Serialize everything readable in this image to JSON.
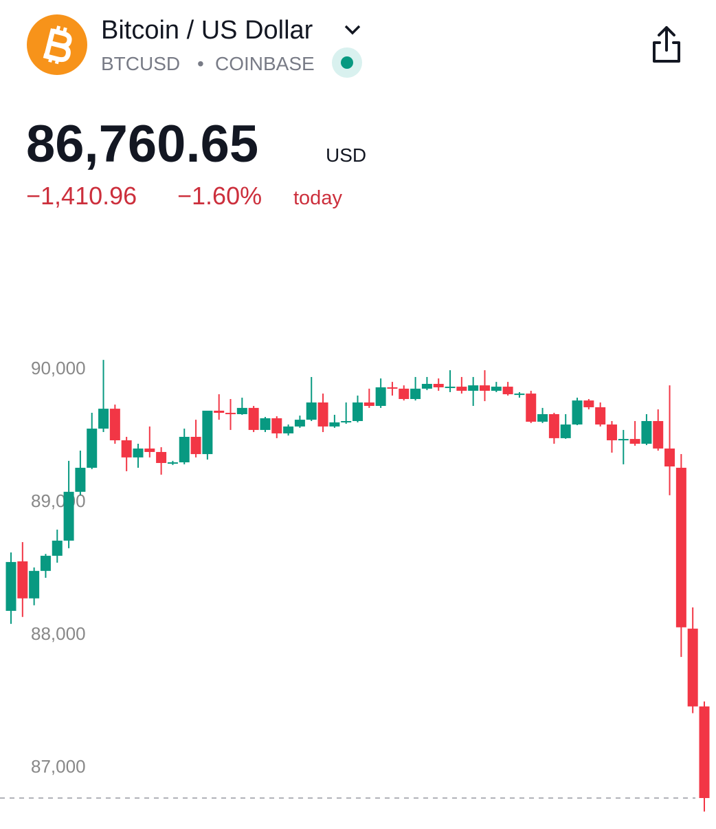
{
  "header": {
    "title": "Bitcoin / US Dollar",
    "symbol": "BTCUSD",
    "separator": "•",
    "exchange": "COINBASE"
  },
  "quote": {
    "price": "86,760.65",
    "currency": "USD",
    "change": "−1,410.96",
    "change_percent": "−1.60%",
    "period": "today"
  },
  "chart_data": {
    "type": "candlestick",
    "open": [
      88171,
      88544,
      88265,
      88472,
      88586,
      88700,
      89068,
      89249,
      89544,
      89694,
      89456,
      89327,
      89394,
      89368,
      89285,
      89290,
      89482,
      89352,
      89679,
      89663,
      89653,
      89700,
      89534,
      89622,
      89508,
      89560,
      89611,
      89741,
      89560,
      89591,
      89601,
      89741,
      89715,
      89855,
      89845,
      89767,
      89845,
      89881,
      89855,
      89860,
      89829,
      89870,
      89829,
      89860,
      89803,
      89808,
      89596,
      89653,
      89472,
      89575,
      89756,
      89705,
      89575,
      89456,
      89466,
      89430,
      89601,
      89394,
      89249,
      88037,
      87451
    ],
    "high": [
      88611,
      88689,
      88498,
      88600,
      88783,
      89301,
      89378,
      89663,
      90062,
      89725,
      89482,
      89430,
      89560,
      89404,
      89301,
      89544,
      89611,
      89679,
      89803,
      89767,
      89777,
      89715,
      89632,
      89637,
      89575,
      89642,
      89933,
      89808,
      89648,
      89741,
      89793,
      89845,
      89922,
      89896,
      89870,
      89933,
      89933,
      89922,
      89984,
      89933,
      89933,
      89984,
      89896,
      89896,
      89819,
      89829,
      89700,
      89663,
      89653,
      89777,
      89767,
      89741,
      89601,
      89534,
      89601,
      89653,
      89689,
      89870,
      89352,
      88197,
      87488
    ],
    "low": [
      88073,
      88125,
      88213,
      88420,
      88534,
      88643,
      89042,
      89239,
      89518,
      89430,
      89223,
      89249,
      89327,
      89197,
      89270,
      89275,
      89327,
      89311,
      89611,
      89534,
      89648,
      89518,
      89518,
      89472,
      89492,
      89550,
      89601,
      89518,
      89550,
      89580,
      89591,
      89700,
      89700,
      89793,
      89756,
      89756,
      89834,
      89829,
      89819,
      89808,
      89715,
      89751,
      89819,
      89793,
      89777,
      89586,
      89586,
      89430,
      89467,
      89570,
      89689,
      89560,
      89363,
      89275,
      89415,
      89420,
      89378,
      89042,
      87824,
      87400,
      86659
    ],
    "close": [
      88539,
      88265,
      88472,
      88586,
      88700,
      89068,
      89249,
      89544,
      89694,
      89456,
      89327,
      89394,
      89368,
      89285,
      89290,
      89482,
      89352,
      89679,
      89663,
      89658,
      89700,
      89534,
      89622,
      89508,
      89560,
      89611,
      89741,
      89560,
      89591,
      89601,
      89741,
      89715,
      89855,
      89845,
      89767,
      89845,
      89881,
      89855,
      89860,
      89829,
      89870,
      89829,
      89860,
      89803,
      89808,
      89596,
      89653,
      89472,
      89575,
      89756,
      89705,
      89575,
      89456,
      89466,
      89430,
      89601,
      89394,
      89259,
      88047,
      87451,
      86760.65
    ],
    "up_color": "#089981",
    "down_color": "#f23645",
    "ylim": [
      86600,
      90560
    ],
    "yticks": [
      {
        "value": 87000,
        "label": "87,000"
      },
      {
        "value": 88000,
        "label": "88,000"
      },
      {
        "value": 89000,
        "label": "89,000"
      },
      {
        "value": 90000,
        "label": "90,000"
      }
    ]
  }
}
